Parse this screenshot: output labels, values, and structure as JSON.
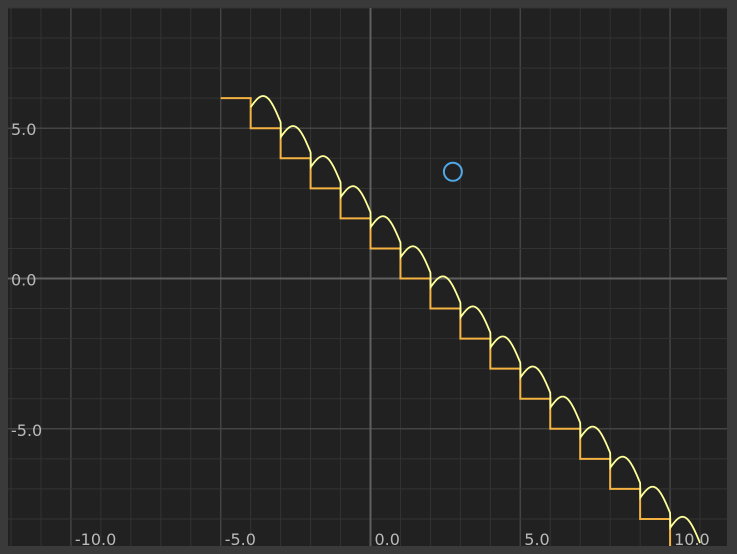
{
  "chart_data": {
    "type": "line",
    "title": "",
    "xlabel": "",
    "ylabel": "",
    "xlim": [
      -12.1,
      11.9
    ],
    "ylim": [
      -8.9,
      9.0
    ],
    "grid": true,
    "x_ticks": [
      {
        "value": -10,
        "label": "-10.0"
      },
      {
        "value": -5,
        "label": "-5.0"
      },
      {
        "value": 0,
        "label": "0.0"
      },
      {
        "value": 5,
        "label": "5.0"
      },
      {
        "value": 10,
        "label": "10.0"
      }
    ],
    "y_ticks": [
      {
        "value": 5,
        "label": "5.0"
      },
      {
        "value": 0,
        "label": "0.0"
      },
      {
        "value": -5,
        "label": "-5.0"
      }
    ],
    "series": [
      {
        "kind": "step",
        "color": "#f5b342",
        "description": "y = -floor(x) + 1 (staircase)",
        "x_start": -5.0,
        "x_end": 11.0
      },
      {
        "kind": "curve",
        "color": "#ffff99",
        "description": "y = -x + 0.5*sin(pi*x)^2 style scalloped curve",
        "x_start": -4.0,
        "x_end": 11.0
      }
    ],
    "annotations": [
      {
        "kind": "circle-marker",
        "x": 2.75,
        "y": 3.55,
        "color": "#4fa8e8"
      }
    ],
    "colors": {
      "background": "#212121",
      "frame": "#3a3a3a",
      "grid_minor": "#333333",
      "grid_major": "#444444",
      "axis": "#5f5f5f",
      "tick_text": "#b9b9b9"
    }
  }
}
